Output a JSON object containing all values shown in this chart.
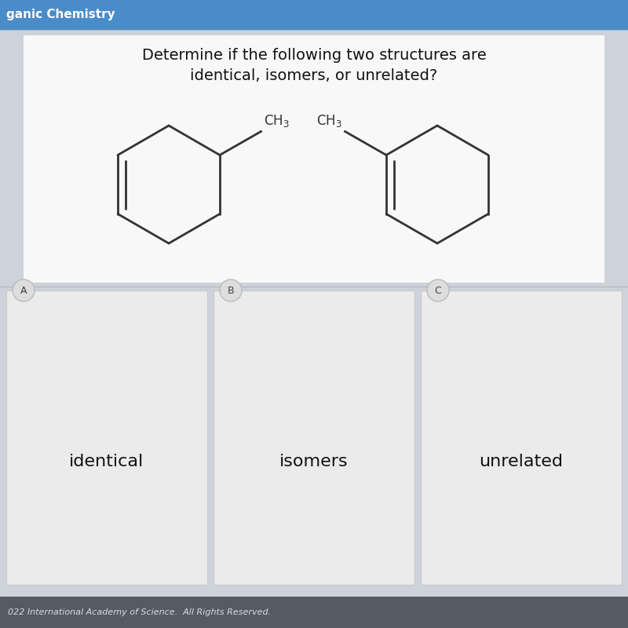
{
  "title_line1": "Determine if the following two structures are",
  "title_line2": "identical, isomers, or unrelated?",
  "header_text": "ganic Chemistry",
  "header_bg": "#4a8cc9",
  "bg_color": "#cdd2db",
  "question_box_bg": "#f8f8f8",
  "answer_box_bg": "#e8e8e8",
  "footer_text": "022 International Academy of Science.  All Rights Reserved.",
  "choices": [
    "identical",
    "isomers",
    "unrelated"
  ],
  "choice_labels": [
    "A",
    "B",
    "C"
  ],
  "line_color": "#333333",
  "text_color": "#111111",
  "title_fontsize": 14,
  "choice_fontsize": 16
}
